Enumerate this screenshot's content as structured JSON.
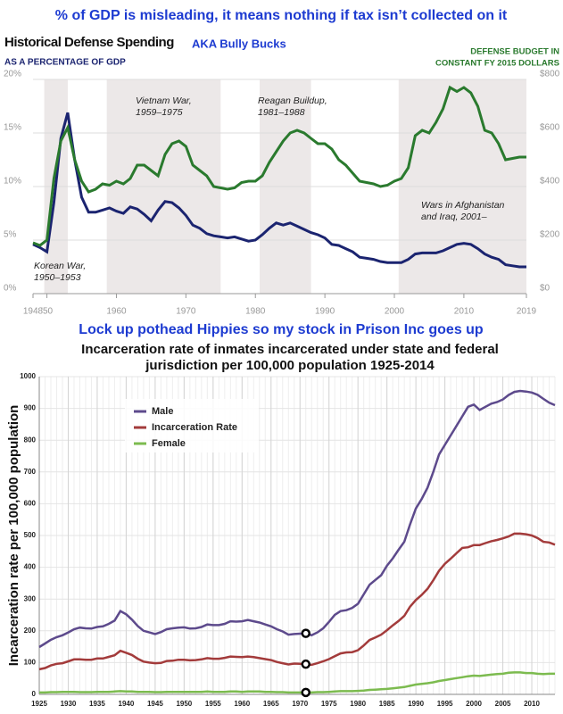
{
  "captions": [
    "% of GDP is misleading, it means nothing if tax isn’t collected on it",
    "AKA Bully Bucks",
    "Lock up pothead Hippies so my stock in Prison Inc goes up"
  ],
  "chart_data": [
    {
      "type": "line",
      "title": "Historical Defense Spending",
      "subtitle": "AS A PERCENTAGE OF GDP",
      "y2_title": [
        "DEFENSE BUDGET IN",
        "CONSTANT FY 2015 DOLLARS"
      ],
      "x": [
        1948,
        1949,
        1950,
        1951,
        1952,
        1953,
        1954,
        1955,
        1956,
        1957,
        1958,
        1959,
        1960,
        1961,
        1962,
        1963,
        1964,
        1965,
        1966,
        1967,
        1968,
        1969,
        1970,
        1971,
        1972,
        1973,
        1974,
        1975,
        1976,
        1977,
        1978,
        1979,
        1980,
        1981,
        1982,
        1983,
        1984,
        1985,
        1986,
        1987,
        1988,
        1989,
        1990,
        1991,
        1992,
        1993,
        1994,
        1995,
        1996,
        1997,
        1998,
        1999,
        2000,
        2001,
        2002,
        2003,
        2004,
        2005,
        2006,
        2007,
        2008,
        2009,
        2010,
        2011,
        2012,
        2013,
        2014,
        2015,
        2016,
        2017,
        2018,
        2019
      ],
      "series": [
        {
          "color": "#1b2470",
          "values": [
            4.6,
            4.3,
            3.9,
            8.5,
            14.5,
            16.9,
            12.5,
            9.0,
            7.6,
            7.6,
            7.8,
            8.0,
            7.7,
            7.5,
            8.1,
            7.9,
            7.4,
            6.8,
            7.8,
            8.6,
            8.5,
            8.0,
            7.3,
            6.4,
            6.1,
            5.6,
            5.4,
            5.3,
            5.2,
            5.3,
            5.1,
            4.9,
            5.0,
            5.5,
            6.1,
            6.6,
            6.4,
            6.6,
            6.3,
            6.0,
            5.7,
            5.5,
            5.2,
            4.6,
            4.5,
            4.2,
            3.9,
            3.4,
            3.3,
            3.2,
            3.0,
            2.9,
            2.9,
            2.9,
            3.2,
            3.7,
            3.8,
            3.8,
            3.8,
            4.0,
            4.3,
            4.6,
            4.7,
            4.6,
            4.2,
            3.7,
            3.4,
            3.2,
            2.7,
            2.6,
            2.5,
            2.5
          ]
        },
        {
          "color": "#2a7a2e",
          "axis": "y2",
          "values": [
            190,
            180,
            200,
            430,
            570,
            620,
            500,
            420,
            380,
            390,
            410,
            405,
            420,
            410,
            430,
            480,
            480,
            460,
            440,
            520,
            560,
            570,
            550,
            480,
            460,
            440,
            400,
            395,
            390,
            395,
            415,
            420,
            420,
            440,
            490,
            530,
            570,
            600,
            610,
            600,
            580,
            560,
            560,
            540,
            500,
            480,
            450,
            420,
            415,
            410,
            400,
            405,
            420,
            430,
            470,
            590,
            610,
            600,
            640,
            690,
            770,
            755,
            770,
            750,
            700,
            610,
            600,
            560,
            500,
            505,
            510,
            510
          ]
        }
      ],
      "xlim": [
        1948,
        2019
      ],
      "xticks": [
        1948,
        {
          "value": 1950,
          "label": "'50"
        },
        1960,
        1970,
        1980,
        1990,
        2000,
        2010,
        2019
      ],
      "ylim": [
        0,
        20
      ],
      "yticks": [
        {
          "value": 0,
          "label": "0%"
        },
        {
          "value": 5,
          "label": "5%"
        },
        {
          "value": 10,
          "label": "10%"
        },
        {
          "value": 15,
          "label": "15%"
        },
        {
          "value": 20,
          "label": "20%"
        }
      ],
      "y2lim": [
        0,
        800
      ],
      "y2ticks": [
        {
          "value": 0,
          "label": "$0"
        },
        {
          "value": 200,
          "label": "$200"
        },
        {
          "value": 400,
          "label": "$400"
        },
        {
          "value": 600,
          "label": "$600"
        },
        {
          "value": 800,
          "label": "$800"
        }
      ],
      "grid": true,
      "periods": [
        [
          1950,
          1953
        ],
        [
          1959,
          1975
        ],
        [
          1981,
          1988
        ],
        [
          2001,
          2019
        ]
      ],
      "annotations": [
        [
          "Korean War,",
          "1950–1953"
        ],
        [
          "Vietnam War,",
          "1959–1975"
        ],
        [
          "Reagan Buildup,",
          "1981–1988"
        ],
        [
          "Wars in Afghanistan",
          "and Iraq, 2001–"
        ]
      ]
    },
    {
      "type": "line",
      "title": [
        "Incarceration rate of inmates incarcerated under state and federal",
        "jurisdiction per 100,000 population 1925-2014"
      ],
      "ylabel": "Incarceration rate per 100,000 population",
      "x": [
        1925,
        1926,
        1927,
        1928,
        1929,
        1930,
        1931,
        1932,
        1933,
        1934,
        1935,
        1936,
        1937,
        1938,
        1939,
        1940,
        1941,
        1942,
        1943,
        1944,
        1945,
        1946,
        1947,
        1948,
        1949,
        1950,
        1951,
        1952,
        1953,
        1954,
        1955,
        1956,
        1957,
        1958,
        1959,
        1960,
        1961,
        1962,
        1963,
        1964,
        1965,
        1966,
        1967,
        1968,
        1969,
        1970,
        1971,
        1972,
        1973,
        1974,
        1975,
        1976,
        1977,
        1978,
        1979,
        1980,
        1981,
        1982,
        1983,
        1984,
        1985,
        1986,
        1987,
        1988,
        1989,
        1990,
        1991,
        1992,
        1993,
        1994,
        1995,
        1996,
        1997,
        1998,
        1999,
        2000,
        2001,
        2002,
        2003,
        2004,
        2005,
        2006,
        2007,
        2008,
        2009,
        2010,
        2011,
        2012,
        2013,
        2014
      ],
      "series": [
        {
          "name": "Male",
          "color": "#5d4a8c",
          "values": [
            149,
            160,
            172,
            180,
            186,
            195,
            205,
            210,
            208,
            207,
            212,
            214,
            222,
            232,
            262,
            252,
            235,
            215,
            200,
            195,
            190,
            196,
            205,
            208,
            210,
            211,
            207,
            208,
            212,
            220,
            218,
            218,
            222,
            230,
            229,
            230,
            234,
            230,
            226,
            220,
            214,
            205,
            198,
            188,
            190,
            191,
            192,
            186,
            195,
            208,
            228,
            250,
            262,
            265,
            272,
            285,
            315,
            345,
            360,
            375,
            405,
            428,
            455,
            480,
            535,
            585,
            615,
            650,
            700,
            755,
            785,
            815,
            845,
            875,
            905,
            912,
            895,
            905,
            915,
            920,
            928,
            942,
            952,
            955,
            953,
            950,
            943,
            930,
            918,
            910
          ]
        },
        {
          "name": "Incarceration Rate",
          "color": "#a33b3b",
          "values": [
            79,
            83,
            91,
            96,
            98,
            104,
            110,
            110,
            109,
            109,
            113,
            113,
            118,
            123,
            137,
            131,
            124,
            112,
            103,
            100,
            98,
            99,
            105,
            106,
            109,
            109,
            107,
            108,
            110,
            114,
            112,
            112,
            115,
            119,
            118,
            117,
            119,
            117,
            114,
            111,
            108,
            102,
            98,
            94,
            97,
            96,
            95,
            93,
            98,
            104,
            111,
            120,
            129,
            132,
            133,
            139,
            154,
            171,
            179,
            188,
            202,
            217,
            231,
            247,
            276,
            297,
            313,
            332,
            359,
            389,
            411,
            427,
            444,
            461,
            463,
            470,
            470,
            476,
            482,
            486,
            491,
            497,
            506,
            506,
            504,
            500,
            492,
            480,
            478,
            471
          ]
        },
        {
          "name": "Female",
          "color": "#7cbb4f",
          "values": [
            6,
            6,
            7,
            7,
            8,
            8,
            8,
            7,
            7,
            7,
            8,
            8,
            8,
            9,
            10,
            9,
            9,
            8,
            8,
            8,
            7,
            7,
            8,
            8,
            8,
            8,
            8,
            8,
            8,
            9,
            8,
            8,
            8,
            9,
            9,
            8,
            9,
            9,
            9,
            8,
            8,
            7,
            7,
            6,
            6,
            6,
            6,
            6,
            7,
            7,
            8,
            9,
            10,
            10,
            10,
            11,
            12,
            14,
            15,
            16,
            17,
            19,
            21,
            23,
            27,
            31,
            33,
            35,
            38,
            42,
            45,
            48,
            51,
            54,
            57,
            59,
            58,
            60,
            62,
            64,
            65,
            68,
            69,
            69,
            67,
            67,
            65,
            64,
            65,
            65
          ]
        }
      ],
      "xlim": [
        1925,
        2014
      ],
      "xticks": [
        1925,
        1930,
        1935,
        1940,
        1945,
        1950,
        1955,
        1960,
        1965,
        1970,
        1975,
        1980,
        1985,
        1990,
        1995,
        2000,
        2005,
        2010
      ],
      "ylim": [
        0,
        1000
      ],
      "yticks": [
        0,
        100,
        200,
        300,
        400,
        500,
        600,
        700,
        800,
        900,
        1000
      ],
      "grid": true,
      "legend": "upper-left",
      "highlight_x": 1971
    }
  ]
}
